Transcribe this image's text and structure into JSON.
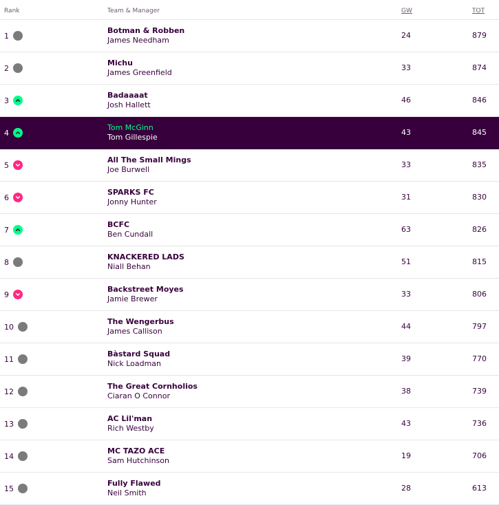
{
  "header": {
    "rank": "Rank",
    "team_manager": "Team & Manager",
    "gw": "GW",
    "tot": "TOT"
  },
  "rows": [
    {
      "rank": "1",
      "movement": "same",
      "team": "Botman & Robben",
      "manager": "James Needham",
      "gw": "24",
      "tot": "879"
    },
    {
      "rank": "2",
      "movement": "same",
      "team": "Michu",
      "manager": "James Greenfield",
      "gw": "33",
      "tot": "874"
    },
    {
      "rank": "3",
      "movement": "up",
      "team": "Badaaaat",
      "manager": "Josh Hallett",
      "gw": "46",
      "tot": "846"
    },
    {
      "rank": "4",
      "movement": "up",
      "team": "Tom McGinn",
      "manager": "Tom Gillespie",
      "gw": "43",
      "tot": "845",
      "highlight": true
    },
    {
      "rank": "5",
      "movement": "down",
      "team": "All The Small Mings",
      "manager": "Joe Burwell",
      "gw": "33",
      "tot": "835"
    },
    {
      "rank": "6",
      "movement": "down",
      "team": "SPARKS FC",
      "manager": "Jonny Hunter",
      "gw": "31",
      "tot": "830"
    },
    {
      "rank": "7",
      "movement": "up",
      "team": "BCFC",
      "manager": "Ben Cundall",
      "gw": "63",
      "tot": "826"
    },
    {
      "rank": "8",
      "movement": "same",
      "team": "KNACKERED LADS",
      "manager": "Niall Behan",
      "gw": "51",
      "tot": "815"
    },
    {
      "rank": "9",
      "movement": "down",
      "team": "Backstreet Moyes",
      "manager": "Jamie Brewer",
      "gw": "33",
      "tot": "806"
    },
    {
      "rank": "10",
      "movement": "same",
      "team": "The Wengerbus",
      "manager": "James Callison",
      "gw": "44",
      "tot": "797"
    },
    {
      "rank": "11",
      "movement": "same",
      "team": "Bàstard Squad",
      "manager": "Nick Loadman",
      "gw": "39",
      "tot": "770"
    },
    {
      "rank": "12",
      "movement": "same",
      "team": "The Great Cornholios",
      "manager": "Ciaran O Connor",
      "gw": "38",
      "tot": "739"
    },
    {
      "rank": "13",
      "movement": "same",
      "team": "AC Lil'man",
      "manager": "Rich Westby",
      "gw": "43",
      "tot": "736"
    },
    {
      "rank": "14",
      "movement": "same",
      "team": "MC TAZO ACE",
      "manager": "Sam Hutchinson",
      "gw": "19",
      "tot": "706"
    },
    {
      "rank": "15",
      "movement": "same",
      "team": "Fully Flawed",
      "manager": "Neil Smith",
      "gw": "28",
      "tot": "613"
    }
  ],
  "colors": {
    "primary": "#37003c",
    "up": "#00ff87",
    "down": "#ff2882",
    "same": "#7b7b7b"
  },
  "icons": {
    "up": "chevron-up-icon",
    "down": "chevron-down-icon",
    "same": "no-change-icon"
  }
}
